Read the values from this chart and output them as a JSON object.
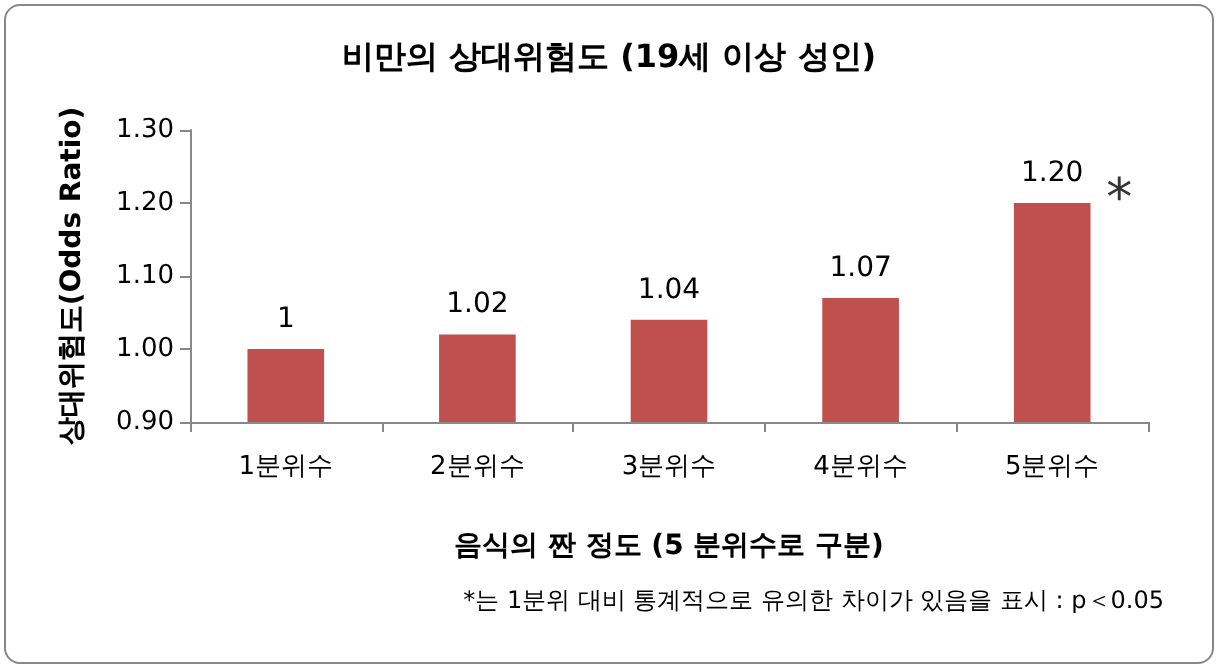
{
  "chart_data": {
    "type": "bar",
    "title": "비만의 상대위험도 (19세 이상 성인)",
    "xlabel": "음식의 짠 정도 (5 분위수로 구분)",
    "ylabel": "상대위험도(Odds Ratio)",
    "categories": [
      "1분위수",
      "2분위수",
      "3분위수",
      "4분위수",
      "5분위수"
    ],
    "values": [
      1,
      1.02,
      1.04,
      1.07,
      1.2
    ],
    "value_labels": [
      "1",
      "1.02",
      "1.04",
      "1.07",
      "1.20"
    ],
    "color": "#c0504d",
    "ylim": [
      0.9,
      1.3
    ],
    "yticks": [
      {
        "value": 0.9,
        "label": "0.90"
      },
      {
        "value": 1.0,
        "label": "1.00"
      },
      {
        "value": 1.1,
        "label": "1.10"
      },
      {
        "value": 1.2,
        "label": "1.20"
      },
      {
        "value": 1.3,
        "label": "1.30"
      }
    ],
    "grid": false,
    "annotations": [
      {
        "text": "*",
        "x": "5분위수",
        "y": 1.2
      },
      "*는 1분위 대비 통계적으로 유의한 차이가 있음을 표시 : p＜0.05"
    ]
  }
}
